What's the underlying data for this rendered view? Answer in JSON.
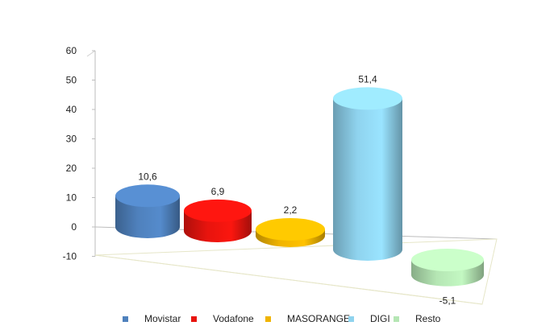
{
  "chart_data": {
    "type": "bar",
    "style": "3d-cylinder",
    "categories": [
      "Movistar",
      "Vodafone",
      "MASORANGE",
      "DIGI",
      "Resto"
    ],
    "values": [
      10.6,
      6.9,
      2.2,
      51.4,
      -5.1
    ],
    "value_labels": [
      "10,6",
      "6,9",
      "2,2",
      "51,4",
      "-5,1"
    ],
    "colors": [
      "#4f81bd",
      "#e8140e",
      "#f0b400",
      "#8fd3ee",
      "#b5e6b4"
    ],
    "ylim": [
      -10,
      60
    ],
    "yticks": [
      -10,
      0,
      10,
      20,
      30,
      40,
      50,
      60
    ],
    "ytick_labels": [
      "-10",
      "0",
      "10",
      "20",
      "30",
      "40",
      "50",
      "60"
    ],
    "grid": false,
    "legend": {
      "position": "bottom",
      "items": [
        "Movistar",
        "Vodafone",
        "MASORANGE",
        "DIGI",
        "Resto"
      ]
    }
  }
}
